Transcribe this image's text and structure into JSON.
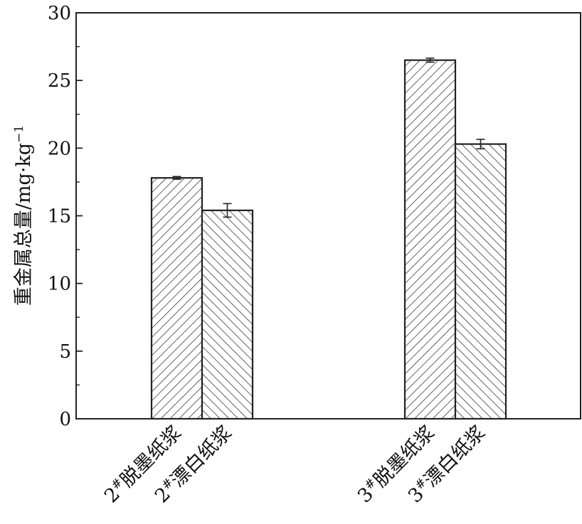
{
  "chart_data": {
    "type": "bar",
    "ylabel": "重金属总量/mg·kg",
    "ylabel_sup": "−1",
    "ylim": [
      0,
      30
    ],
    "yticks": [
      0,
      5,
      10,
      15,
      20,
      25,
      30
    ],
    "groups": [
      {
        "bars": [
          {
            "prefix": "2",
            "sup": "#",
            "label": "脱墨纸浆",
            "value": 17.8,
            "error": 0.1,
            "hatch": "forward"
          },
          {
            "prefix": "2",
            "sup": "#",
            "label": "漂白纸浆",
            "value": 15.4,
            "error": 0.5,
            "hatch": "back"
          }
        ]
      },
      {
        "bars": [
          {
            "prefix": "3",
            "sup": "#",
            "label": "脱墨纸浆",
            "value": 26.5,
            "error": 0.15,
            "hatch": "forward"
          },
          {
            "prefix": "3",
            "sup": "#",
            "label": "漂白纸浆",
            "value": 20.3,
            "error": 0.35,
            "hatch": "back"
          }
        ]
      }
    ],
    "grid": false,
    "legend": "none"
  }
}
